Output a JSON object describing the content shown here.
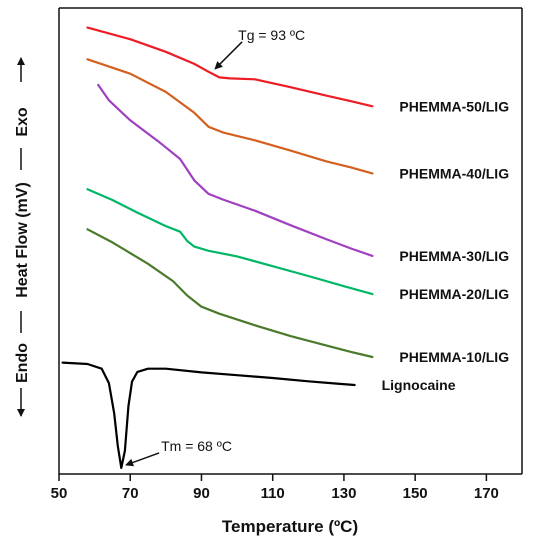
{
  "chart_data": {
    "type": "line",
    "xlabel": "Temperature (ºC)",
    "ylabel": {
      "exo": "Exo",
      "middle": "Heat Flow (mV)",
      "endo": "Endo"
    },
    "xlim": [
      50,
      180
    ],
    "xticks": [
      50,
      70,
      90,
      110,
      130,
      150,
      170
    ],
    "ylim": [
      0,
      100
    ],
    "grid": false,
    "series": [
      {
        "name": "PHEMMA-50/LIG",
        "color": "#ee1c25",
        "points": [
          [
            58,
            95.8
          ],
          [
            70,
            93.3
          ],
          [
            80,
            90.6
          ],
          [
            88,
            88.0
          ],
          [
            92,
            86.3
          ],
          [
            95,
            85.1
          ],
          [
            98,
            84.9
          ],
          [
            105,
            84.7
          ],
          [
            115,
            83.0
          ],
          [
            125,
            81.2
          ],
          [
            132,
            80.0
          ],
          [
            138,
            78.9
          ]
        ]
      },
      {
        "name": "PHEMMA-40/LIG",
        "color": "#d4601f",
        "points": [
          [
            58,
            89.0
          ],
          [
            70,
            85.9
          ],
          [
            80,
            82.0
          ],
          [
            88,
            77.5
          ],
          [
            92,
            74.5
          ],
          [
            96,
            73.3
          ],
          [
            105,
            71.6
          ],
          [
            115,
            69.4
          ],
          [
            125,
            67.1
          ],
          [
            132,
            65.8
          ],
          [
            138,
            64.5
          ]
        ]
      },
      {
        "name": "PHEMMA-30/LIG",
        "color": "#a040c0",
        "points": [
          [
            61,
            83.5
          ],
          [
            64,
            80.2
          ],
          [
            70,
            75.9
          ],
          [
            78,
            71.3
          ],
          [
            84,
            67.6
          ],
          [
            88,
            63.0
          ],
          [
            92,
            60.1
          ],
          [
            96,
            58.9
          ],
          [
            105,
            56.5
          ],
          [
            115,
            53.4
          ],
          [
            125,
            50.4
          ],
          [
            132,
            48.4
          ],
          [
            138,
            46.8
          ]
        ]
      },
      {
        "name": "PHEMMA-20/LIG",
        "color": "#00b765",
        "points": [
          [
            58,
            61.1
          ],
          [
            65,
            58.8
          ],
          [
            72,
            56.1
          ],
          [
            80,
            53.2
          ],
          [
            84,
            52.0
          ],
          [
            86,
            50.0
          ],
          [
            88,
            48.8
          ],
          [
            92,
            47.9
          ],
          [
            100,
            46.7
          ],
          [
            110,
            44.6
          ],
          [
            120,
            42.5
          ],
          [
            130,
            40.3
          ],
          [
            138,
            38.6
          ]
        ]
      },
      {
        "name": "PHEMMA-10/LIG",
        "color": "#4a7a2c",
        "points": [
          [
            58,
            52.5
          ],
          [
            65,
            49.7
          ],
          [
            75,
            45.1
          ],
          [
            82,
            41.4
          ],
          [
            86,
            38.3
          ],
          [
            90,
            35.9
          ],
          [
            95,
            34.4
          ],
          [
            105,
            31.9
          ],
          [
            115,
            29.6
          ],
          [
            125,
            27.6
          ],
          [
            132,
            26.2
          ],
          [
            138,
            25.1
          ]
        ]
      },
      {
        "name": "Lignocaine",
        "color": "#000000",
        "points": [
          [
            51,
            23.9
          ],
          [
            58,
            23.6
          ],
          [
            62,
            22.6
          ],
          [
            64,
            19.5
          ],
          [
            65.5,
            13.0
          ],
          [
            66.5,
            6.0
          ],
          [
            67.5,
            1.3
          ],
          [
            68.5,
            5.0
          ],
          [
            69.5,
            14.5
          ],
          [
            70.5,
            19.8
          ],
          [
            72,
            21.9
          ],
          [
            75,
            22.6
          ],
          [
            80,
            22.6
          ],
          [
            90,
            21.8
          ],
          [
            100,
            21.2
          ],
          [
            110,
            20.6
          ],
          [
            120,
            19.9
          ],
          [
            128,
            19.4
          ],
          [
            133,
            19.1
          ]
        ]
      }
    ],
    "annotations": [
      {
        "text": "Tg = 93 ºC",
        "series": "PHEMMA-50/LIG",
        "x": 93,
        "y": 86.3
      },
      {
        "text": "Tm = 68 ºC",
        "series": "Lignocaine",
        "x": 68,
        "y": 1.3
      }
    ]
  }
}
